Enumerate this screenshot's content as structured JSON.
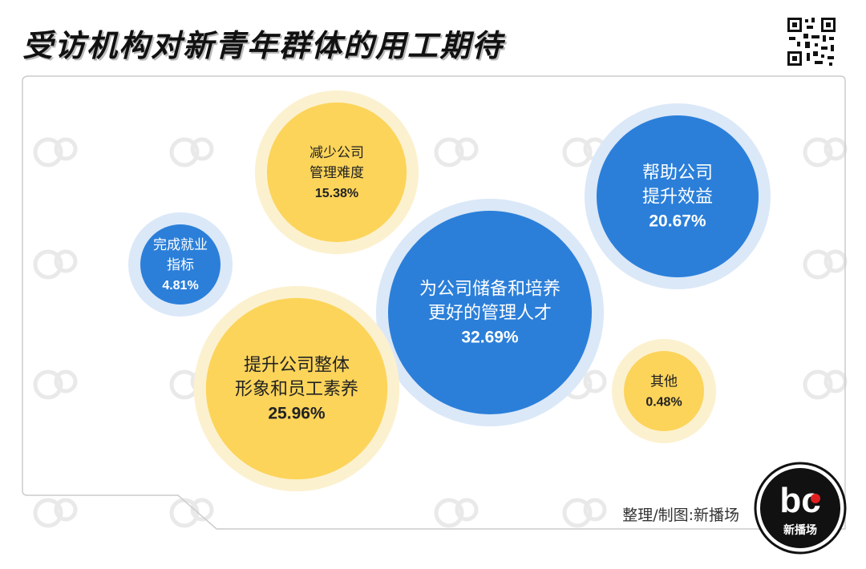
{
  "title": "受访机构对新青年群体的用工期待",
  "credit": "整理/制图:新播场",
  "logo": {
    "mark": "bc",
    "name": "新播场"
  },
  "colors": {
    "blue": "#2b7fd9",
    "blue_halo": "#dbe8f8",
    "yellow": "#fcd45a",
    "yellow_halo": "#fcf1cf",
    "frame": "#cccccc"
  },
  "chart_data": {
    "type": "bubble",
    "title": "受访机构对新青年群体的用工期待",
    "unit": "%",
    "items": [
      {
        "label_lines": [
          "为公司储备和培养",
          "更好的管理人才"
        ],
        "value": 32.69,
        "value_label": "32.69%",
        "color": "blue"
      },
      {
        "label_lines": [
          "提升公司整体",
          "形象和员工素养"
        ],
        "value": 25.96,
        "value_label": "25.96%",
        "color": "yellow"
      },
      {
        "label_lines": [
          "帮助公司",
          "提升效益"
        ],
        "value": 20.67,
        "value_label": "20.67%",
        "color": "blue"
      },
      {
        "label_lines": [
          "减少公司",
          "管理难度"
        ],
        "value": 15.38,
        "value_label": "15.38%",
        "color": "yellow"
      },
      {
        "label_lines": [
          "完成就业",
          "指标"
        ],
        "value": 4.81,
        "value_label": "4.81%",
        "color": "blue"
      },
      {
        "label_lines": [
          "其他"
        ],
        "value": 0.48,
        "value_label": "0.48%",
        "color": "yellow"
      }
    ]
  }
}
